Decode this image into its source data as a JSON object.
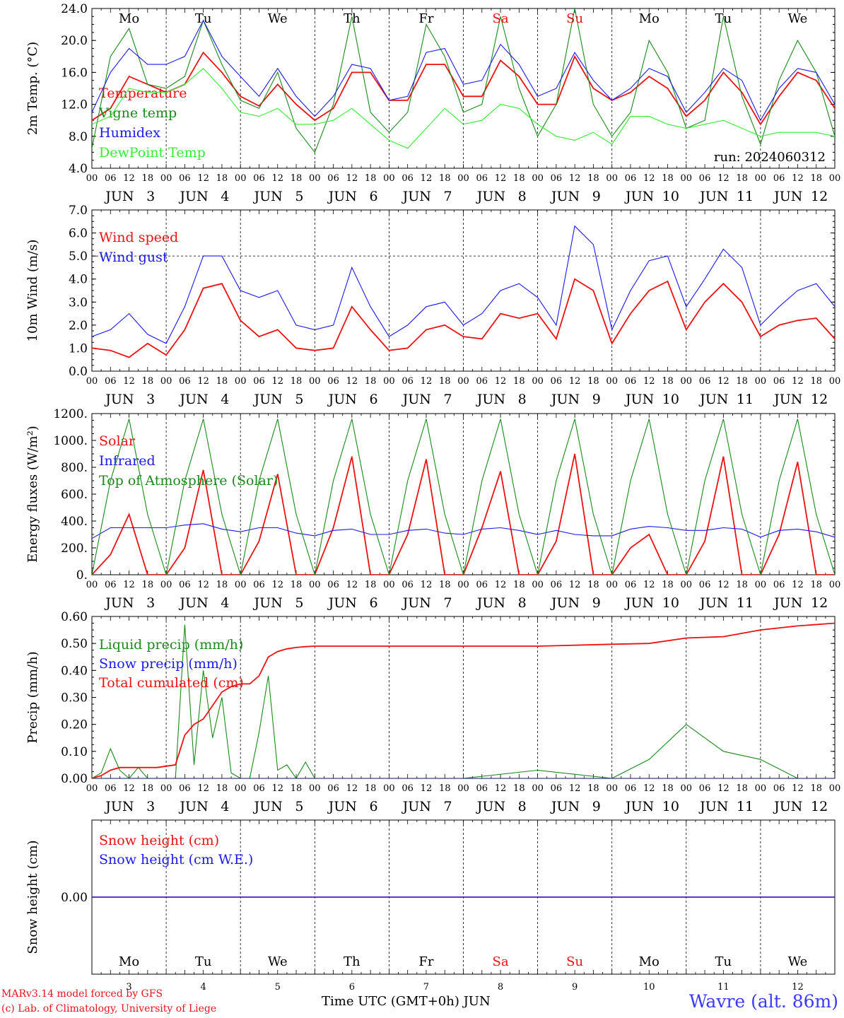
{
  "colors": {
    "red": "#ee1111",
    "dark_green": "#1a8a1a",
    "light_green": "#33ee33",
    "blue": "#1a1aee",
    "purple": "#7722aa",
    "weekend": "#ee1111"
  },
  "axis": {
    "hour_ticks": [
      "00",
      "06",
      "12",
      "18"
    ],
    "final_hour": "00",
    "days": [
      "3",
      "4",
      "5",
      "6",
      "7",
      "8",
      "9",
      "10",
      "11",
      "12"
    ],
    "month": "JUN",
    "weekdays": [
      {
        "name": "Mo",
        "weekend": false
      },
      {
        "name": "Tu",
        "weekend": false
      },
      {
        "name": "We",
        "weekend": false
      },
      {
        "name": "Th",
        "weekend": false
      },
      {
        "name": "Fr",
        "weekend": false
      },
      {
        "name": "Sa",
        "weekend": true
      },
      {
        "name": "Su",
        "weekend": true
      },
      {
        "name": "Mo",
        "weekend": false
      },
      {
        "name": "Tu",
        "weekend": false
      },
      {
        "name": "We",
        "weekend": false
      }
    ],
    "x_unit": "hours since 2024-06-03 00 UTC",
    "x_range": [
      0,
      240
    ]
  },
  "footer": {
    "credit_line1": "MARv3.14 model forced by GFS",
    "credit_line2": "(c) Lab. of Climatology, University of Liege",
    "time_label": "Time UTC (GMT+0h) JUN",
    "station": "Wavre (alt. 86m)"
  },
  "chart_data": [
    {
      "type": "line",
      "ylabel": "2m Temp. (°C)",
      "ylim": [
        4,
        24
      ],
      "yticks": [
        "4.0",
        "8.0",
        "12.0",
        "16.0",
        "20.0",
        "24.0"
      ],
      "annotation": "run: 2024060312",
      "show_weekdays": true,
      "x": [
        0,
        6,
        12,
        18,
        24,
        30,
        36,
        42,
        48,
        54,
        60,
        66,
        72,
        78,
        84,
        90,
        96,
        102,
        108,
        114,
        120,
        126,
        132,
        138,
        144,
        150,
        156,
        162,
        168,
        174,
        180,
        186,
        192,
        198,
        204,
        210,
        216,
        222,
        228,
        234,
        240
      ],
      "series": [
        {
          "name": "Temperature",
          "color": "red",
          "values": [
            10,
            11.5,
            15.5,
            14.5,
            13.5,
            14.5,
            18.5,
            16,
            13,
            11.8,
            14.5,
            12,
            10,
            11.5,
            16,
            16,
            12.5,
            12.5,
            17,
            17,
            13,
            13,
            17.5,
            15.5,
            12,
            12,
            18,
            14,
            12.5,
            13.5,
            15.5,
            14,
            10.5,
            12.5,
            16,
            13.5,
            9.5,
            13,
            16,
            15,
            11.5
          ]
        },
        {
          "name": "Vigne temp",
          "color": "dark_green",
          "values": [
            6.5,
            18,
            21.5,
            14.5,
            14,
            15.5,
            22.5,
            17,
            12.5,
            11.5,
            16,
            9,
            6,
            12,
            23,
            11,
            8.5,
            11,
            22,
            18,
            11,
            12,
            23,
            14,
            8,
            12,
            24,
            12,
            8,
            11,
            20,
            16,
            9,
            10,
            23,
            13,
            7,
            15,
            20,
            16,
            8
          ]
        },
        {
          "name": "Humidex",
          "color": "blue",
          "values": [
            11,
            16,
            19,
            17,
            17,
            18,
            22.5,
            18,
            15.5,
            13,
            16.5,
            13,
            10.5,
            13,
            17,
            16.5,
            12.5,
            13,
            18.5,
            19,
            14.5,
            15,
            19.5,
            17,
            13,
            14,
            18.5,
            15,
            12.5,
            14,
            16.5,
            15.5,
            11,
            13.5,
            16.5,
            15,
            10,
            14,
            16.5,
            16,
            12
          ]
        },
        {
          "name": "DewPoint Temp",
          "color": "light_green",
          "values": [
            9.5,
            10.5,
            14,
            13.5,
            13.5,
            14.5,
            16.5,
            14,
            11,
            10.5,
            11.5,
            9.5,
            9.5,
            10,
            11.5,
            9.5,
            7.5,
            6.5,
            9,
            11.5,
            9.5,
            10,
            12,
            11.5,
            9.5,
            8,
            7.5,
            8.5,
            7,
            10.5,
            10.5,
            9.5,
            9,
            9.5,
            10,
            9,
            8,
            8.5,
            8.5,
            8.5,
            8
          ]
        }
      ]
    },
    {
      "type": "line",
      "ylabel": "10m Wind (m/s)",
      "ylim": [
        0,
        7
      ],
      "yticks": [
        "0.0",
        "1.0",
        "2.0",
        "3.0",
        "4.0",
        "5.0",
        "6.0",
        "7.0"
      ],
      "ref_line": 5,
      "show_weekdays": false,
      "x": [
        0,
        6,
        12,
        18,
        24,
        30,
        36,
        42,
        48,
        54,
        60,
        66,
        72,
        78,
        84,
        90,
        96,
        102,
        108,
        114,
        120,
        126,
        132,
        138,
        144,
        150,
        156,
        162,
        168,
        174,
        180,
        186,
        192,
        198,
        204,
        210,
        216,
        222,
        228,
        234,
        240
      ],
      "series": [
        {
          "name": "Wind speed",
          "color": "red",
          "values": [
            1,
            0.9,
            0.6,
            1.2,
            0.7,
            1.8,
            3.6,
            3.8,
            2.2,
            1.5,
            1.8,
            1,
            0.9,
            1,
            2.8,
            1.8,
            0.9,
            1,
            1.8,
            2,
            1.5,
            1.4,
            2.5,
            2.3,
            2.5,
            1.4,
            4,
            3.5,
            1.2,
            2.5,
            3.5,
            3.9,
            1.8,
            3,
            3.8,
            3,
            1.5,
            2,
            2.2,
            2.3,
            1.4
          ]
        },
        {
          "name": "Wind gust",
          "color": "blue",
          "values": [
            1.5,
            1.8,
            2.5,
            1.6,
            1.2,
            2.8,
            5,
            5,
            3.5,
            3.2,
            3.5,
            2,
            1.8,
            2,
            4.5,
            2.8,
            1.5,
            2,
            2.8,
            3,
            2,
            2.5,
            3.5,
            3.8,
            3.2,
            2,
            6.3,
            5.5,
            1.8,
            3.5,
            4.8,
            5,
            2.8,
            4,
            5.3,
            4.5,
            2,
            2.8,
            3.5,
            3.8,
            2.8
          ]
        }
      ]
    },
    {
      "type": "line",
      "ylabel": "Energy fluxes (W/m²)",
      "ylim": [
        0,
        1200
      ],
      "yticks": [
        "0.",
        "200.",
        "400.",
        "600.",
        "800.",
        "1000.",
        "1200."
      ],
      "show_weekdays": false,
      "x": [
        0,
        6,
        12,
        18,
        24,
        30,
        36,
        42,
        48,
        54,
        60,
        66,
        72,
        78,
        84,
        90,
        96,
        102,
        108,
        114,
        120,
        126,
        132,
        138,
        144,
        150,
        156,
        162,
        168,
        174,
        180,
        186,
        192,
        198,
        204,
        210,
        216,
        222,
        228,
        234,
        240
      ],
      "series": [
        {
          "name": "Solar",
          "color": "red",
          "values": [
            0,
            150,
            450,
            0,
            0,
            200,
            780,
            0,
            0,
            250,
            750,
            0,
            0,
            350,
            880,
            0,
            0,
            300,
            860,
            0,
            0,
            350,
            770,
            0,
            0,
            250,
            900,
            0,
            0,
            200,
            300,
            0,
            0,
            250,
            880,
            0,
            0,
            300,
            840,
            0,
            0
          ]
        },
        {
          "name": "Infrared",
          "color": "blue",
          "values": [
            270,
            350,
            350,
            350,
            350,
            370,
            380,
            340,
            320,
            350,
            350,
            310,
            290,
            330,
            340,
            300,
            300,
            330,
            340,
            310,
            300,
            340,
            350,
            330,
            300,
            330,
            300,
            290,
            290,
            340,
            360,
            350,
            330,
            330,
            350,
            340,
            280,
            330,
            340,
            320,
            280
          ]
        },
        {
          "name": "Top of Atmosphere (Solar)",
          "color": "dark_green",
          "values": [
            0,
            700,
            1160,
            450,
            0,
            700,
            1160,
            450,
            0,
            700,
            1160,
            450,
            0,
            700,
            1160,
            450,
            0,
            700,
            1160,
            450,
            0,
            700,
            1160,
            450,
            0,
            700,
            1160,
            450,
            0,
            700,
            1160,
            450,
            0,
            700,
            1160,
            450,
            0,
            700,
            1160,
            450,
            0
          ]
        }
      ]
    },
    {
      "type": "line",
      "ylabel": "Precip (mm/h)",
      "ylim": [
        0,
        0.6
      ],
      "yticks": [
        "0.00",
        "0.10",
        "0.20",
        "0.30",
        "0.40",
        "0.50",
        "0.60"
      ],
      "show_weekdays": false,
      "x": [
        0,
        3,
        6,
        9,
        12,
        15,
        18,
        21,
        24,
        27,
        30,
        33,
        36,
        39,
        42,
        45,
        48,
        51,
        54,
        57,
        60,
        63,
        66,
        69,
        72,
        96,
        120,
        144,
        168,
        180,
        192,
        204,
        216,
        228,
        240
      ],
      "series": [
        {
          "name": "Liquid precip (mm/h)",
          "color": "dark_green",
          "values": [
            0,
            0.02,
            0.11,
            0.03,
            0,
            0.04,
            0,
            0,
            0,
            0,
            0.57,
            0.05,
            0.4,
            0.15,
            0.3,
            0.02,
            0,
            0,
            0.17,
            0.38,
            0.03,
            0.05,
            0,
            0.06,
            0,
            0,
            0,
            0.03,
            0,
            0.07,
            0.2,
            0.1,
            0.07,
            0,
            0
          ]
        },
        {
          "name": "Snow precip (mm/h)",
          "color": "blue",
          "values": [
            0,
            0,
            0,
            0,
            0,
            0,
            0,
            0,
            0,
            0,
            0,
            0,
            0,
            0,
            0,
            0,
            0,
            0,
            0,
            0,
            0,
            0,
            0,
            0,
            0,
            0,
            0,
            0,
            0,
            0,
            0,
            0,
            0,
            0,
            0
          ]
        },
        {
          "name": "Total cumulated (cm)",
          "color": "red",
          "values": [
            0,
            0.01,
            0.03,
            0.04,
            0.04,
            0.04,
            0.04,
            0.04,
            0.045,
            0.05,
            0.16,
            0.2,
            0.22,
            0.27,
            0.32,
            0.34,
            0.35,
            0.35,
            0.38,
            0.45,
            0.47,
            0.48,
            0.485,
            0.488,
            0.49,
            0.49,
            0.49,
            0.49,
            0.497,
            0.5,
            0.52,
            0.525,
            0.55,
            0.565,
            0.575
          ]
        }
      ]
    },
    {
      "type": "line",
      "ylabel": "Snow height (cm)",
      "ylim": [
        -1,
        1
      ],
      "yticks": [
        "0.00"
      ],
      "show_weekdays": true,
      "x": [
        0,
        240
      ],
      "series": [
        {
          "name": "Snow height (cm)",
          "color": "red",
          "values": [
            0,
            0
          ]
        },
        {
          "name": "Snow height (cm W.E.)",
          "color": "blue",
          "values": [
            0,
            0
          ]
        }
      ]
    }
  ]
}
